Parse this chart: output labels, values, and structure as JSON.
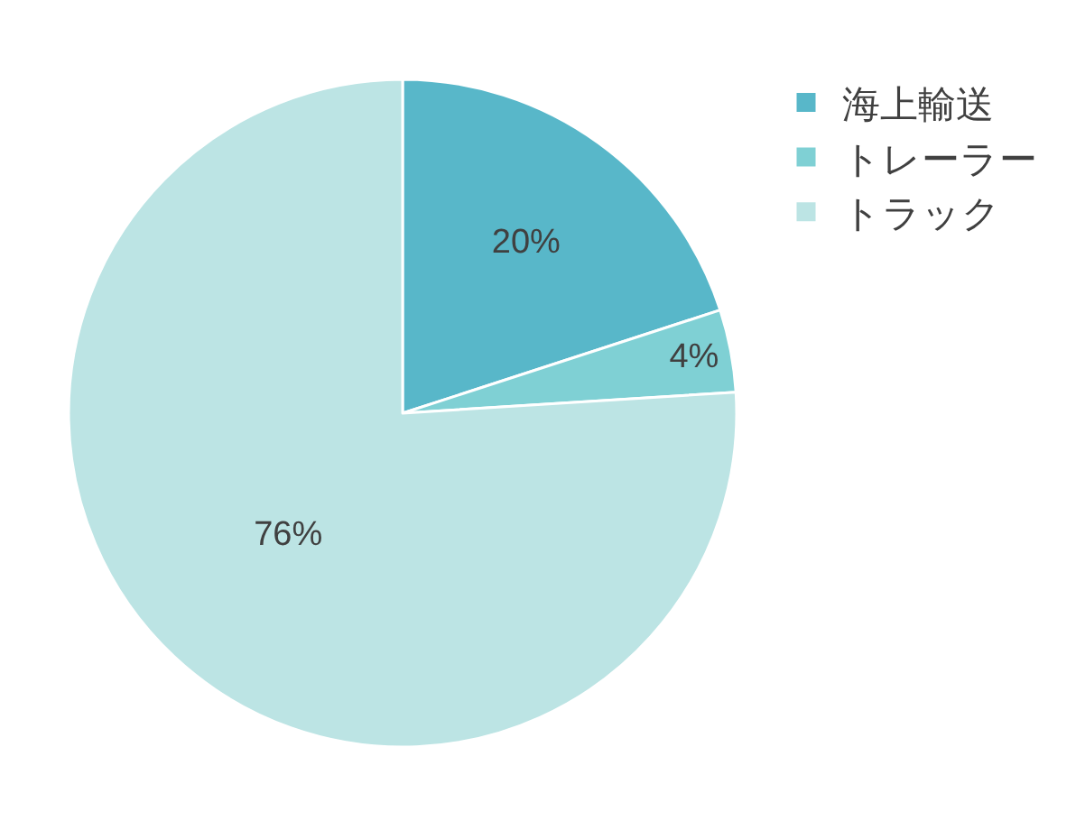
{
  "chart_data": {
    "type": "pie",
    "categories": [
      "海上輸送",
      "トレーラー",
      "トラック"
    ],
    "values": [
      20,
      4,
      76
    ],
    "colors": [
      "#58b7c9",
      "#7fd0d4",
      "#bce4e4"
    ],
    "value_labels": [
      "20%",
      "4%",
      "76%"
    ],
    "legend": "top right"
  }
}
